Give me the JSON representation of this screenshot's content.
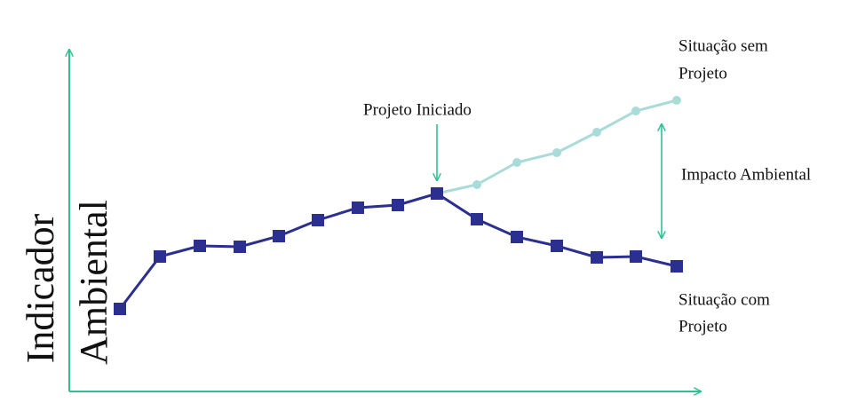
{
  "y_axis_label": [
    "Indicador",
    "Ambiental"
  ],
  "start_label": "Projeto Iniciado",
  "without_project_label": [
    "Situação sem",
    "Projeto"
  ],
  "impact_label": "Impacto Ambiental",
  "with_project_label": [
    "Situação com",
    "Projeto"
  ]
}
